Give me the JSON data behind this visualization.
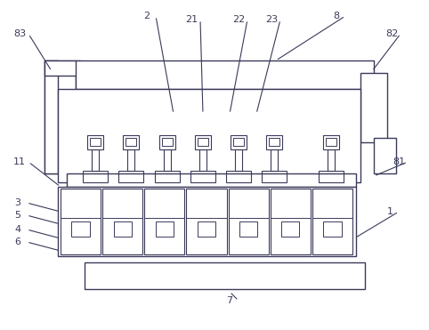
{
  "figsize": [
    4.82,
    3.71
  ],
  "dpi": 100,
  "line_color": "#3a3a5a",
  "lw": 1.0,
  "background": "#ffffff",
  "annotations": [
    [
      "83",
      22,
      38,
      58,
      80
    ],
    [
      "8",
      378,
      18,
      310,
      68
    ],
    [
      "82",
      440,
      38,
      418,
      80
    ],
    [
      "2",
      165,
      18,
      195,
      128
    ],
    [
      "21",
      215,
      22,
      228,
      128
    ],
    [
      "22",
      268,
      22,
      258,
      128
    ],
    [
      "23",
      305,
      22,
      288,
      128
    ],
    [
      "11",
      22,
      182,
      68,
      210
    ],
    [
      "81",
      448,
      182,
      420,
      198
    ],
    [
      "3",
      20,
      228,
      68,
      238
    ],
    [
      "5",
      20,
      242,
      68,
      252
    ],
    [
      "4",
      20,
      258,
      68,
      268
    ],
    [
      "6",
      20,
      272,
      68,
      282
    ],
    [
      "1",
      438,
      238,
      398,
      268
    ],
    [
      "7",
      258,
      338,
      258,
      328
    ]
  ]
}
